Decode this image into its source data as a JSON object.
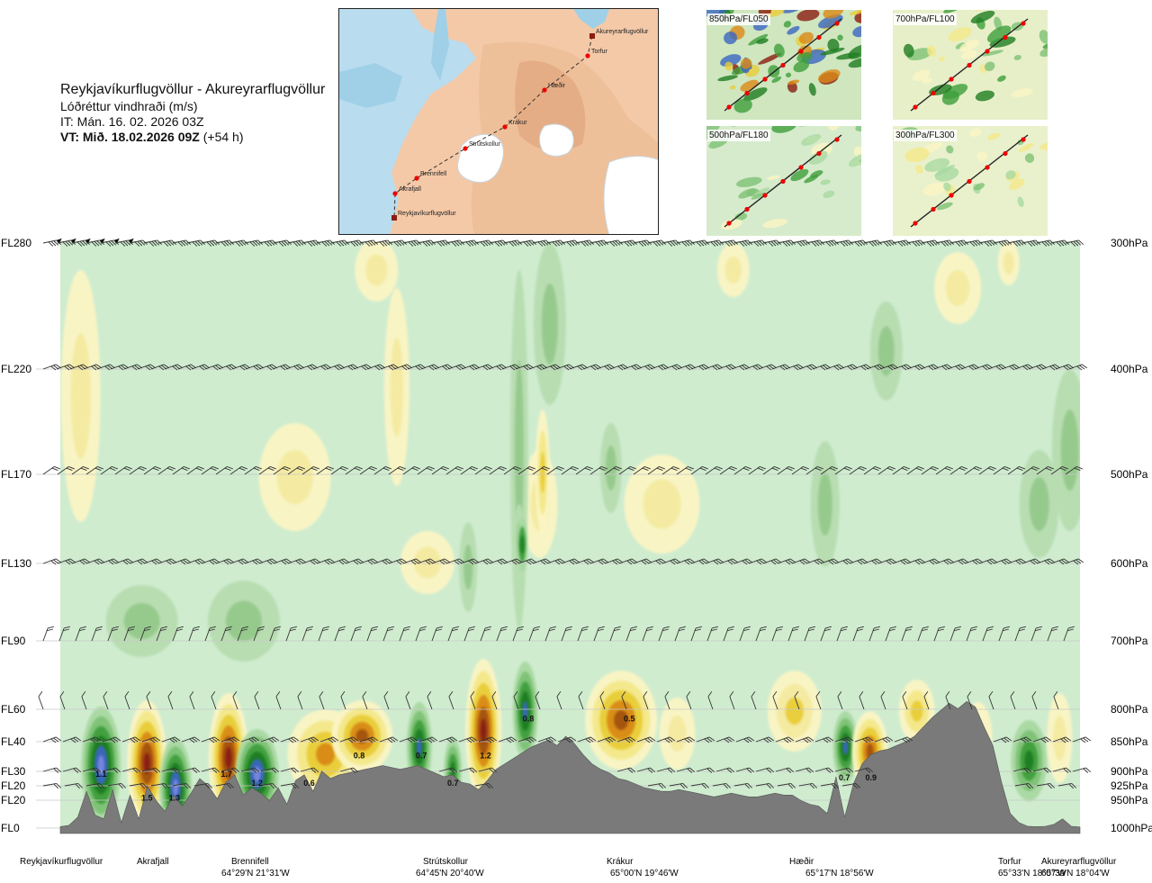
{
  "header": {
    "route": "Reykjavíkurflugvöllur - Akureyrarflugvöllur",
    "quantity": "Lóðréttur vindhraði (m/s)",
    "issued": "IT: Mán. 16. 02. 2026 03Z",
    "valid_bold": "VT: Mið. 18.02.2026 09Z",
    "valid_offset": " (+54 h)"
  },
  "route_map": {
    "stations": [
      "Akureyrarflugvöllur",
      "Torfur",
      "Hæðir",
      "Krákur",
      "Strútskollur",
      "Brennifell",
      "Akrafjall",
      "Reykjavíkurflugvöllur"
    ]
  },
  "insets": [
    {
      "label": "850hPa/FL050"
    },
    {
      "label": "700hPa/FL100"
    },
    {
      "label": "500hPa/FL180"
    },
    {
      "label": "300hPa/FL300"
    }
  ],
  "chart_data": {
    "type": "heatmap",
    "variable": "Lóðréttur vindhraði (m/s)",
    "left_axis_levels": [
      "FL280",
      "FL220",
      "FL170",
      "FL130",
      "FL90",
      "FL60",
      "FL40",
      "FL30",
      "FL20",
      "FL20",
      "FL0"
    ],
    "right_axis_levels": [
      "300hPa",
      "400hPa",
      "500hPa",
      "600hPa",
      "700hPa",
      "800hPa",
      "850hPa",
      "900hPa",
      "925hPa",
      "950hPa",
      "1000hPa"
    ],
    "waypoints": [
      {
        "name": "Reykjavíkurflugvöllur",
        "coord": "",
        "x": 0.0
      },
      {
        "name": "Akrafjall",
        "coord": "",
        "x": 0.09
      },
      {
        "name": "Brennifell",
        "coord": "64°29'N 21°31'W",
        "x": 0.19
      },
      {
        "name": "Strútskollur",
        "coord": "64°45'N 20°40'W",
        "x": 0.38
      },
      {
        "name": "Krákur",
        "coord": "65°00'N 19°46'W",
        "x": 0.55
      },
      {
        "name": "Hæðir",
        "coord": "65°17'N 18°56'W",
        "x": 0.73
      },
      {
        "name": "Torfur",
        "coord": "65°33'N 18°07'W",
        "x": 0.94
      },
      {
        "name": "Akureyrarflugvöllur",
        "coord": "65°39'N 18°04'W",
        "x": 1.0
      }
    ],
    "value_labels": [
      {
        "text": "1.1",
        "x": 0.04,
        "fl": 30
      },
      {
        "text": "1.5",
        "x": 0.085,
        "fl": 17
      },
      {
        "text": "1.3",
        "x": 0.112,
        "fl": 17
      },
      {
        "text": "1.7",
        "x": 0.163,
        "fl": 30
      },
      {
        "text": "1.2",
        "x": 0.193,
        "fl": 25
      },
      {
        "text": "0.6",
        "x": 0.244,
        "fl": 25
      },
      {
        "text": "0.8",
        "x": 0.293,
        "fl": 40
      },
      {
        "text": "0.7",
        "x": 0.354,
        "fl": 40
      },
      {
        "text": "0.7",
        "x": 0.385,
        "fl": 25
      },
      {
        "text": "1.2",
        "x": 0.417,
        "fl": 40
      },
      {
        "text": "0.8",
        "x": 0.459,
        "fl": 60
      },
      {
        "text": "0.5",
        "x": 0.558,
        "fl": 60
      },
      {
        "text": "0.7",
        "x": 0.769,
        "fl": 28
      },
      {
        "text": "0.9",
        "x": 0.795,
        "fl": 28
      }
    ],
    "terrain_ft": [
      80,
      150,
      600,
      2000,
      700,
      500,
      2100,
      300,
      1800,
      500,
      2300,
      1500,
      900,
      1800,
      1200,
      1900,
      2700,
      2300,
      1600,
      2500,
      2900,
      1800,
      2200,
      1900,
      1500,
      2200,
      1300,
      2600,
      2900,
      2000,
      3100,
      2700,
      2900,
      3000,
      3100,
      3200,
      3300,
      3400,
      3300,
      3200,
      3300,
      3400,
      3200,
      3000,
      2800,
      2900,
      2500,
      2400,
      2100,
      2600,
      3200,
      3500,
      3800,
      4100,
      4400,
      4600,
      4800,
      4500,
      5000,
      4600,
      4000,
      3500,
      3200,
      3000,
      2700,
      2600,
      2400,
      2200,
      2100,
      2000,
      2000,
      2100,
      2000,
      1900,
      1800,
      1700,
      1800,
      1900,
      1800,
      1700,
      1700,
      1800,
      1900,
      1800,
      1800,
      1500,
      1300,
      1200,
      800,
      2800,
      600,
      2400,
      3500,
      4000,
      4200,
      4300,
      4500,
      4700,
      5000,
      5500,
      6000,
      6400,
      6800,
      6500,
      6900,
      6600,
      5500,
      4500,
      2500,
      800,
      300,
      100,
      80,
      100,
      200,
      500,
      100,
      60
    ]
  }
}
